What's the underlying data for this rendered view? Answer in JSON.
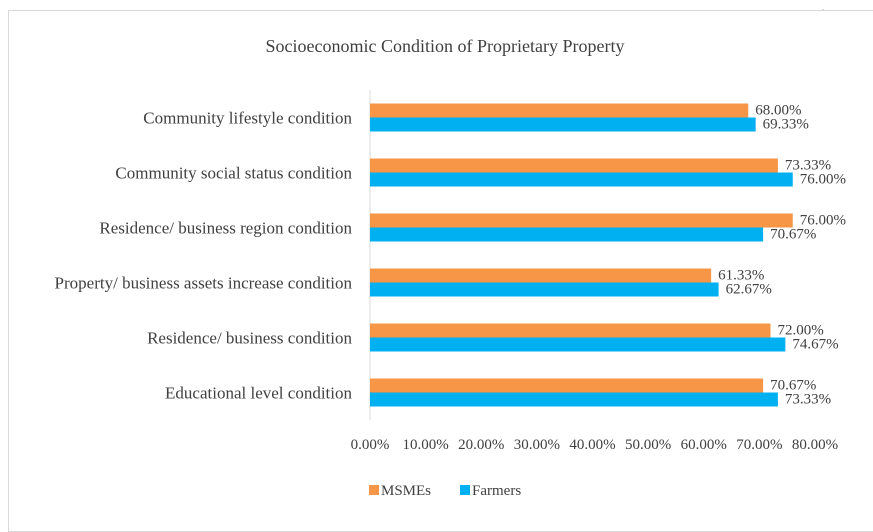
{
  "page": {
    "cropped_top_text": "p"
  },
  "chart_data": {
    "type": "bar",
    "orientation": "horizontal",
    "title": "Socioeconomic Condition of Proprietary Property",
    "categories": [
      "Community lifestyle condition",
      "Community social status condition",
      "Residence/ business region condition",
      "Property/ business assets increase condition",
      "Residence/ business condition",
      "Educational level condition"
    ],
    "series": [
      {
        "name": "MSMEs",
        "color": "#f79646",
        "values": [
          68.0,
          73.33,
          76.0,
          61.33,
          72.0,
          70.67
        ],
        "labels": [
          "68.00%",
          "73.33%",
          "76.00%",
          "61.33%",
          "72.00%",
          "70.67%"
        ]
      },
      {
        "name": "Farmers",
        "color": "#00b0f0",
        "values": [
          69.33,
          76.0,
          70.67,
          62.67,
          74.67,
          73.33
        ],
        "labels": [
          "69.33%",
          "76.00%",
          "70.67%",
          "62.67%",
          "74.67%",
          "73.33%"
        ]
      }
    ],
    "xlim": [
      0,
      80
    ],
    "xticks": [
      "0.00%",
      "10.00%",
      "20.00%",
      "30.00%",
      "40.00%",
      "50.00%",
      "60.00%",
      "70.00%",
      "80.00%"
    ],
    "grid": false,
    "legend": "bottom"
  }
}
